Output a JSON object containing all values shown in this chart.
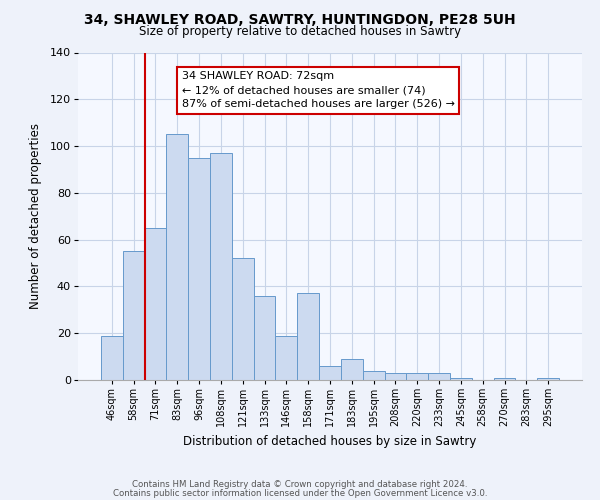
{
  "title": "34, SHAWLEY ROAD, SAWTRY, HUNTINGDON, PE28 5UH",
  "subtitle": "Size of property relative to detached houses in Sawtry",
  "xlabel": "Distribution of detached houses by size in Sawtry",
  "ylabel": "Number of detached properties",
  "bar_labels": [
    "46sqm",
    "58sqm",
    "71sqm",
    "83sqm",
    "96sqm",
    "108sqm",
    "121sqm",
    "133sqm",
    "146sqm",
    "158sqm",
    "171sqm",
    "183sqm",
    "195sqm",
    "208sqm",
    "220sqm",
    "233sqm",
    "245sqm",
    "258sqm",
    "270sqm",
    "283sqm",
    "295sqm"
  ],
  "bar_values": [
    19,
    55,
    65,
    105,
    95,
    97,
    52,
    36,
    19,
    37,
    6,
    9,
    4,
    3,
    3,
    3,
    1,
    0,
    1,
    0,
    1
  ],
  "bar_color": "#ccdaf0",
  "bar_edge_color": "#6699cc",
  "vline_color": "#cc0000",
  "annotation_text": "34 SHAWLEY ROAD: 72sqm\n← 12% of detached houses are smaller (74)\n87% of semi-detached houses are larger (526) →",
  "annotation_box_edge_color": "#cc0000",
  "ylim": [
    0,
    140
  ],
  "yticks": [
    0,
    20,
    40,
    60,
    80,
    100,
    120,
    140
  ],
  "footer_line1": "Contains HM Land Registry data © Crown copyright and database right 2024.",
  "footer_line2": "Contains public sector information licensed under the Open Government Licence v3.0.",
  "bg_color": "#eef2fa",
  "plot_bg_color": "#f5f8ff",
  "grid_color": "#c8d4e8"
}
